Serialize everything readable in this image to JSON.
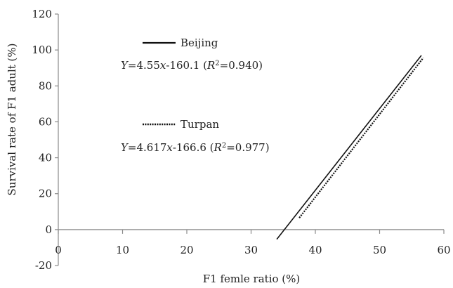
{
  "chart_data": {
    "type": "line",
    "xlabel": "F1 femle ratio (%)",
    "ylabel": "Survival rate of F1 adult (%)",
    "xlim": [
      0,
      60
    ],
    "ylim": [
      -20,
      120
    ],
    "x_ticks": [
      0,
      10,
      20,
      30,
      40,
      50,
      60
    ],
    "y_ticks": [
      -20,
      0,
      20,
      40,
      60,
      80,
      100,
      120
    ],
    "grid": false,
    "legend_position": "top-left",
    "series": [
      {
        "name": "Beijing",
        "style": "solid",
        "color": "#111111",
        "equation": "Y=4.55x-160.1 (R2=0.940)",
        "slope": 4.55,
        "intercept": -160.1,
        "x_range": [
          34,
          56.5
        ]
      },
      {
        "name": "Turpan",
        "style": "dotted",
        "color": "#111111",
        "equation": "Y=4.617x-166.6 (R2=0.977)",
        "slope": 4.617,
        "intercept": -166.6,
        "x_range": [
          37.5,
          56.8
        ]
      }
    ],
    "legend": [
      {
        "label": "Beijing",
        "equation": [
          "Y",
          "=4.55",
          "x",
          "-160.1 (",
          "R",
          "2",
          "=0.940)"
        ]
      },
      {
        "label": "Turpan",
        "equation": [
          "Y",
          "=4.617",
          "x",
          "-166.6 (",
          "R",
          "2",
          "=0.977)"
        ]
      }
    ]
  }
}
